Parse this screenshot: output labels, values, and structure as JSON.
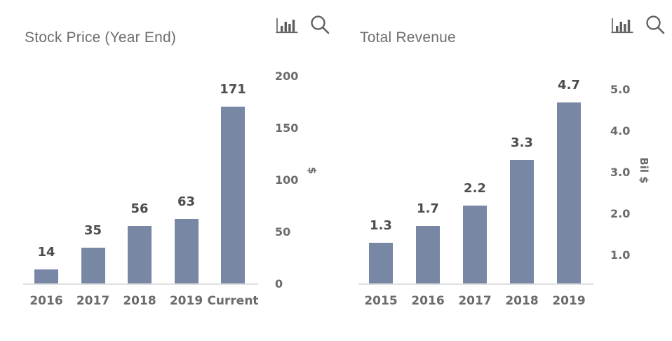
{
  "colors": {
    "background": "#ffffff",
    "bar_fill": "#7787a4",
    "axis_line": "#e0e0e0",
    "title_text": "#6e6e6e",
    "tick_text": "#6b6b6b",
    "value_label_text": "#4d4d4d",
    "icon": "#5e5e5e"
  },
  "chart_data": [
    {
      "type": "bar",
      "title": "Stock Price (Year End)",
      "categories": [
        "2016",
        "2017",
        "2018",
        "2019",
        "Current"
      ],
      "values": [
        14,
        35,
        56,
        63,
        171
      ],
      "value_labels": [
        "14",
        "35",
        "56",
        "63",
        "171"
      ],
      "xlabel": "",
      "ylabel": "$",
      "yticks": [
        0,
        50,
        100,
        150,
        200
      ],
      "ytick_labels": [
        "0",
        "50",
        "100",
        "150",
        "200"
      ],
      "ylim": [
        0,
        200
      ],
      "grid": false,
      "legend": false,
      "bar_color": "#7787a4",
      "toolbar_icons": [
        "bar-chart-icon",
        "search-icon"
      ]
    },
    {
      "type": "bar",
      "title": "Total Revenue",
      "categories": [
        "2015",
        "2016",
        "2017",
        "2018",
        "2019"
      ],
      "values": [
        1.3,
        1.7,
        2.2,
        3.3,
        4.7
      ],
      "value_labels": [
        "1.3",
        "1.7",
        "2.2",
        "3.3",
        "4.7"
      ],
      "xlabel": "",
      "ylabel": "Bil $",
      "yticks": [
        1.0,
        2.0,
        3.0,
        4.0,
        5.0
      ],
      "ytick_labels": [
        "1.0",
        "2.0",
        "3.0",
        "4.0",
        "5.0"
      ],
      "ylim": [
        0.3,
        5.0
      ],
      "grid": false,
      "legend": false,
      "bar_color": "#7787a4",
      "toolbar_icons": [
        "bar-chart-icon",
        "search-icon"
      ]
    }
  ]
}
